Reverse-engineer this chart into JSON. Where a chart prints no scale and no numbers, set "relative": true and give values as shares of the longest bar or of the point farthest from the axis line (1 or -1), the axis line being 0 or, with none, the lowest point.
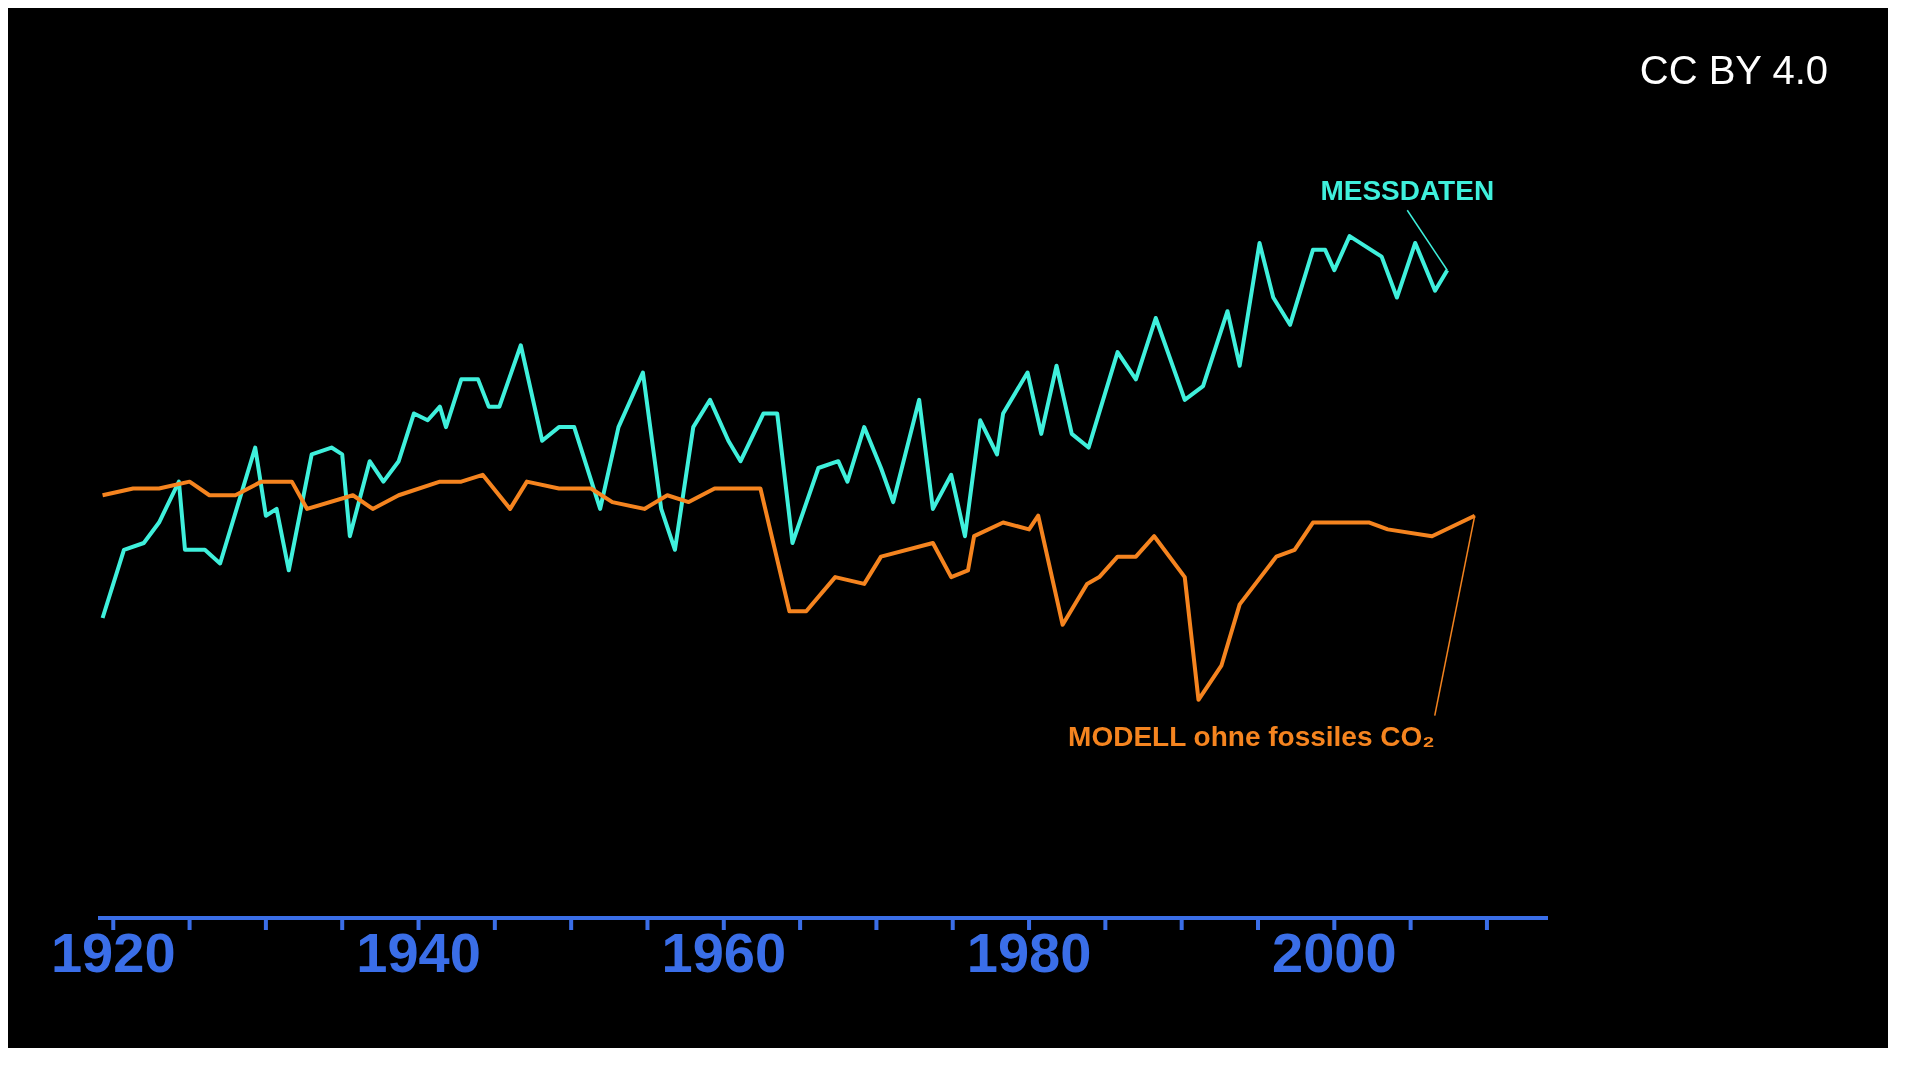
{
  "chart_data": {
    "type": "line",
    "relative": true,
    "xlim": [
      1919,
      2014
    ],
    "xticks": [
      1920,
      {
        "value": 1925,
        "label": null
      },
      {
        "value": 1930,
        "label": null
      },
      {
        "value": 1935,
        "label": null
      },
      1940,
      {
        "value": 1945,
        "label": null
      },
      {
        "value": 1950,
        "label": null
      },
      {
        "value": 1955,
        "label": null
      },
      1960,
      {
        "value": 1965,
        "label": null
      },
      {
        "value": 1970,
        "label": null
      },
      {
        "value": 1975,
        "label": null
      },
      1980,
      {
        "value": 1985,
        "label": null
      },
      {
        "value": 1990,
        "label": null
      },
      {
        "value": 1995,
        "label": null
      },
      2000,
      {
        "value": 2005,
        "label": null
      },
      {
        "value": 2010,
        "label": null
      }
    ],
    "line_style": "solid",
    "annotations": [
      "CC BY 4.0"
    ],
    "series": [
      {
        "name": "MESSDATEN",
        "color": "#3ff0dc",
        "x": [
          1919.3,
          1920.7,
          1922.0,
          1923.0,
          1924.3,
          1924.7,
          1926.0,
          1927.0,
          1929.3,
          1930.0,
          1930.7,
          1931.5,
          1933.0,
          1934.3,
          1935.0,
          1935.5,
          1936.8,
          1937.7,
          1938.7,
          1939.7,
          1940.6,
          1941.4,
          1941.8,
          1942.8,
          1943.9,
          1944.6,
          1945.3,
          1946.7,
          1948.1,
          1949.2,
          1950.2,
          1951.9,
          1953.1,
          1954.7,
          1955.9,
          1956.8,
          1958.0,
          1959.1,
          1960.3,
          1961.1,
          1962.6,
          1963.5,
          1964.5,
          1966.2,
          1967.5,
          1968.1,
          1969.2,
          1970.3,
          1971.1,
          1972.8,
          1973.7,
          1974.9,
          1975.8,
          1976.8,
          1977.9,
          1978.3,
          1979.9,
          1980.8,
          1981.8,
          1982.8,
          1983.9,
          1985.8,
          1987.0,
          1988.3,
          1990.2,
          1991.4,
          1993.0,
          1993.8,
          1995.1,
          1996.0,
          1997.1,
          1998.6,
          1999.4,
          2000.0,
          2001.0,
          2003.1,
          2004.1,
          2005.3,
          2006.6,
          2007.4
        ],
        "values": [
          0.44,
          0.54,
          0.55,
          0.58,
          0.64,
          0.54,
          0.54,
          0.52,
          0.69,
          0.59,
          0.6,
          0.51,
          0.68,
          0.69,
          0.68,
          0.56,
          0.67,
          0.64,
          0.67,
          0.74,
          0.73,
          0.75,
          0.72,
          0.79,
          0.79,
          0.75,
          0.75,
          0.84,
          0.7,
          0.72,
          0.72,
          0.6,
          0.72,
          0.8,
          0.6,
          0.54,
          0.72,
          0.76,
          0.7,
          0.67,
          0.74,
          0.74,
          0.55,
          0.66,
          0.67,
          0.64,
          0.72,
          0.66,
          0.61,
          0.76,
          0.6,
          0.65,
          0.56,
          0.73,
          0.68,
          0.74,
          0.8,
          0.71,
          0.81,
          0.71,
          0.69,
          0.83,
          0.79,
          0.88,
          0.76,
          0.78,
          0.89,
          0.81,
          0.99,
          0.91,
          0.87,
          0.98,
          0.98,
          0.95,
          1,
          0.97,
          0.91,
          0.99,
          0.92,
          0.95
        ]
      },
      {
        "name": "MODELL ohne fossiles CO₂",
        "color": "#f5841f",
        "x": [
          1919.3,
          1921.3,
          1923.0,
          1925.0,
          1926.3,
          1928.0,
          1929.7,
          1930.7,
          1931.7,
          1932.7,
          1935.7,
          1937.0,
          1938.7,
          1941.4,
          1942.8,
          1944.2,
          1946.0,
          1947.1,
          1949.2,
          1951.3,
          1952.7,
          1954.8,
          1956.3,
          1957.7,
          1959.4,
          1962.4,
          1964.3,
          1965.4,
          1967.3,
          1969.2,
          1970.3,
          1973.7,
          1974.9,
          1976.0,
          1976.4,
          1978.3,
          1980.0,
          1980.6,
          1982.2,
          1983.8,
          1984.6,
          1985.8,
          1987.0,
          1988.2,
          1990.2,
          1991.1,
          1992.6,
          1993.8,
          1996.2,
          1997.4,
          1998.6,
          2002.3,
          2003.5,
          2006.4,
          2009.2
        ],
        "values": [
          0.62,
          0.63,
          0.63,
          0.64,
          0.62,
          0.62,
          0.64,
          0.64,
          0.64,
          0.6,
          0.62,
          0.6,
          0.62,
          0.64,
          0.64,
          0.65,
          0.6,
          0.64,
          0.63,
          0.63,
          0.61,
          0.6,
          0.62,
          0.61,
          0.63,
          0.63,
          0.45,
          0.45,
          0.5,
          0.49,
          0.53,
          0.55,
          0.5,
          0.51,
          0.56,
          0.58,
          0.57,
          0.59,
          0.43,
          0.49,
          0.5,
          0.53,
          0.53,
          0.56,
          0.5,
          0.32,
          0.37,
          0.46,
          0.53,
          0.54,
          0.58,
          0.58,
          0.57,
          0.56,
          0.59
        ]
      }
    ]
  }
}
